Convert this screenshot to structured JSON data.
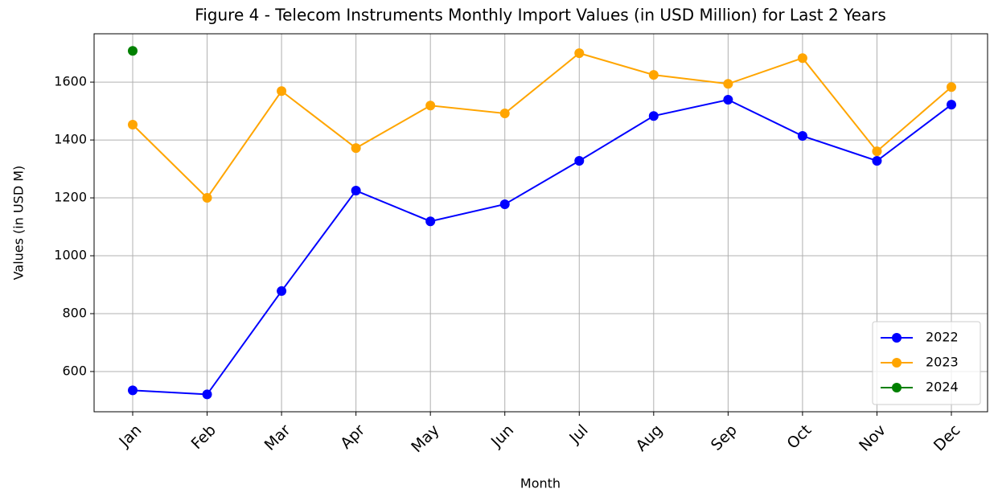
{
  "chart_data": {
    "type": "line",
    "title": "Figure 4 - Telecom Instruments Monthly Import Values (in USD Million) for Last 2 Years",
    "xlabel": "Month",
    "ylabel": "Values (in USD M)",
    "categories": [
      "Jan",
      "Feb",
      "Mar",
      "Apr",
      "May",
      "Jun",
      "Jul",
      "Aug",
      "Sep",
      "Oct",
      "Nov",
      "Dec"
    ],
    "series": [
      {
        "name": "2022",
        "color": "#0000ff",
        "values": [
          535,
          521,
          878,
          1225,
          1119,
          1178,
          1328,
          1483,
          1539,
          1414,
          1328,
          1522
        ]
      },
      {
        "name": "2023",
        "color": "#ffa500",
        "values": [
          1453,
          1200,
          1569,
          1372,
          1519,
          1492,
          1700,
          1625,
          1594,
          1683,
          1361,
          1583
        ]
      },
      {
        "name": "2024",
        "color": "#008000",
        "values": [
          1708,
          null,
          null,
          null,
          null,
          null,
          null,
          null,
          null,
          null,
          null,
          null
        ]
      }
    ],
    "ylim": [
      461,
      1767
    ],
    "yticks": [
      600,
      800,
      1000,
      1200,
      1400,
      1600
    ],
    "grid": true,
    "legend": "lower right"
  }
}
